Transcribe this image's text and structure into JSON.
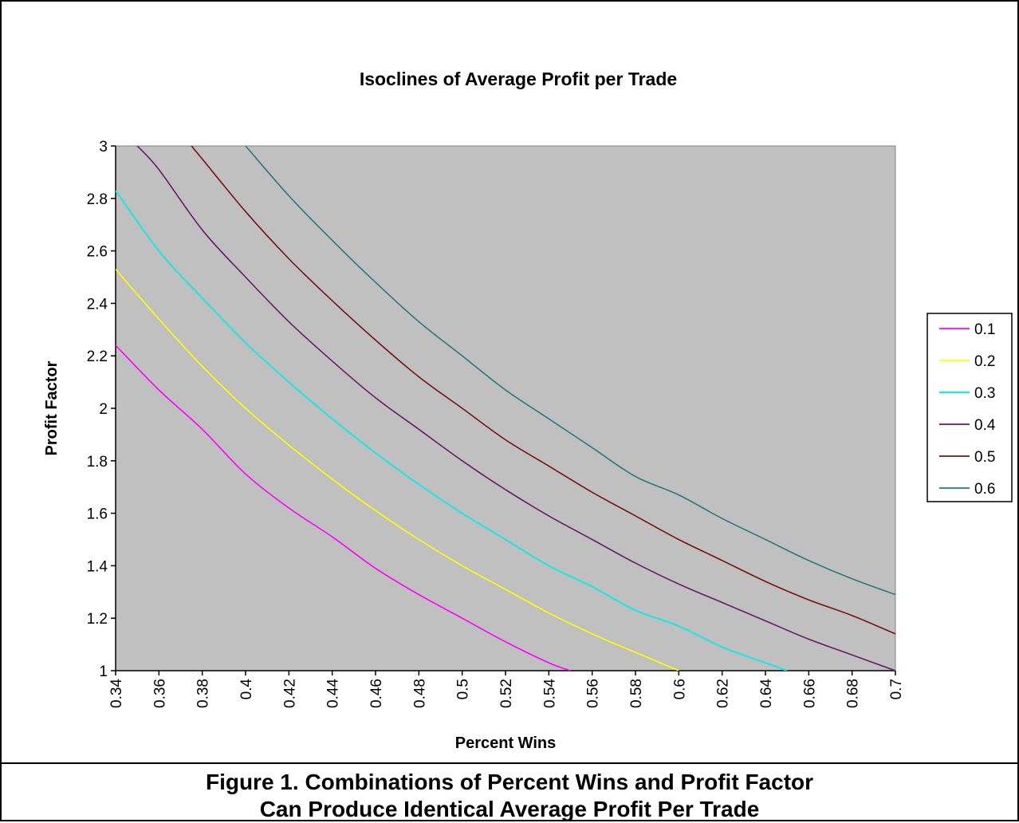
{
  "caption": {
    "line1": "Figure 1.  Combinations of Percent Wins and Profit Factor",
    "line2": "Can Produce Identical Average Profit Per Trade"
  },
  "chart_data": {
    "type": "line",
    "title": "Isoclines of Average Profit per Trade",
    "xlabel": "Percent Wins",
    "ylabel": "Profit Factor",
    "xlim": [
      0.34,
      0.7
    ],
    "ylim": [
      1,
      3
    ],
    "x_ticks": [
      "0.34",
      "0.36",
      "0.38",
      "0.4",
      "0.42",
      "0.44",
      "0.46",
      "0.48",
      "0.5",
      "0.52",
      "0.54",
      "0.56",
      "0.58",
      "0.6",
      "0.62",
      "0.64",
      "0.66",
      "0.68",
      "0.7"
    ],
    "y_ticks": [
      "1",
      "1.2",
      "1.4",
      "1.6",
      "1.8",
      "2",
      "2.2",
      "2.4",
      "2.6",
      "2.8",
      "3"
    ],
    "plot_background": "#c0c0c0",
    "grid": false,
    "legend_position": "right",
    "series": [
      {
        "name": "0.1",
        "color": "#ff00ff",
        "k": 0.1,
        "x": [
          0.34,
          0.36,
          0.38,
          0.4,
          0.42,
          0.44,
          0.46,
          0.48,
          0.5,
          0.52,
          0.54,
          0.55
        ],
        "values": [
          2.24,
          2.07,
          1.92,
          1.75,
          1.62,
          1.51,
          1.39,
          1.29,
          1.2,
          1.11,
          1.03,
          1.0
        ]
      },
      {
        "name": "0.2",
        "color": "#ffff00",
        "k": 0.2,
        "x": [
          0.34,
          0.36,
          0.38,
          0.4,
          0.42,
          0.44,
          0.46,
          0.48,
          0.5,
          0.52,
          0.54,
          0.56,
          0.58,
          0.6
        ],
        "values": [
          2.53,
          2.34,
          2.16,
          2.0,
          1.86,
          1.73,
          1.61,
          1.5,
          1.4,
          1.31,
          1.22,
          1.14,
          1.07,
          1.0
        ]
      },
      {
        "name": "0.3",
        "color": "#33e0e0",
        "k": 0.3,
        "x": [
          0.34,
          0.36,
          0.38,
          0.4,
          0.42,
          0.44,
          0.46,
          0.48,
          0.5,
          0.52,
          0.54,
          0.56,
          0.58,
          0.6,
          0.62,
          0.64,
          0.65
        ],
        "values": [
          2.83,
          2.6,
          2.42,
          2.25,
          2.1,
          1.96,
          1.83,
          1.71,
          1.6,
          1.5,
          1.4,
          1.32,
          1.23,
          1.17,
          1.09,
          1.03,
          1.0
        ]
      },
      {
        "name": "0.4",
        "color": "#6a1a6a",
        "k": 0.4,
        "x": [
          0.35,
          0.36,
          0.38,
          0.4,
          0.42,
          0.44,
          0.46,
          0.48,
          0.5,
          0.52,
          0.54,
          0.56,
          0.58,
          0.6,
          0.62,
          0.64,
          0.66,
          0.68,
          0.7
        ],
        "values": [
          3.0,
          2.91,
          2.68,
          2.5,
          2.33,
          2.18,
          2.04,
          1.92,
          1.8,
          1.69,
          1.59,
          1.5,
          1.41,
          1.33,
          1.26,
          1.19,
          1.12,
          1.06,
          1.0
        ]
      },
      {
        "name": "0.5",
        "color": "#7a1010",
        "k": 0.5,
        "x": [
          0.375,
          0.38,
          0.4,
          0.42,
          0.44,
          0.46,
          0.48,
          0.5,
          0.52,
          0.54,
          0.56,
          0.58,
          0.6,
          0.62,
          0.64,
          0.66,
          0.68,
          0.7
        ],
        "values": [
          3.0,
          2.95,
          2.75,
          2.57,
          2.41,
          2.26,
          2.12,
          2.0,
          1.88,
          1.78,
          1.68,
          1.59,
          1.5,
          1.42,
          1.34,
          1.27,
          1.21,
          1.14
        ]
      },
      {
        "name": "0.6",
        "color": "#2a7a7a",
        "k": 0.6,
        "x": [
          0.4,
          0.42,
          0.44,
          0.46,
          0.48,
          0.5,
          0.52,
          0.54,
          0.56,
          0.58,
          0.6,
          0.62,
          0.64,
          0.66,
          0.68,
          0.7
        ],
        "values": [
          3.0,
          2.81,
          2.64,
          2.48,
          2.33,
          2.2,
          2.07,
          1.96,
          1.85,
          1.74,
          1.67,
          1.58,
          1.5,
          1.42,
          1.35,
          1.29
        ]
      }
    ]
  }
}
